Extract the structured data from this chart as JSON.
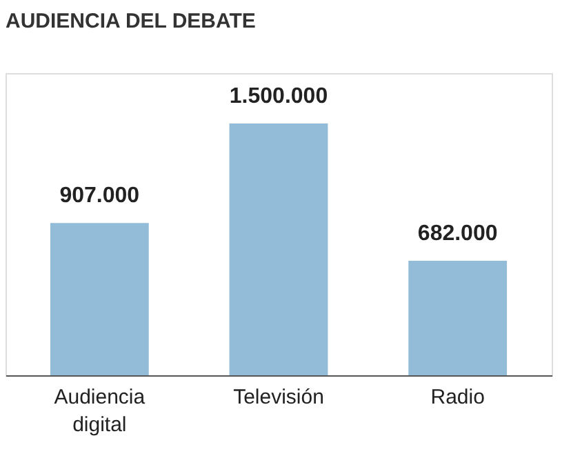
{
  "chart_data": {
    "type": "bar",
    "title": "AUDIENCIA DEL DEBATE",
    "categories": [
      "Audiencia digital",
      "Televisión",
      "Radio"
    ],
    "values": [
      907000,
      1500000,
      682000
    ],
    "value_labels": [
      "907.000",
      "1.500.000",
      "682.000"
    ],
    "color": "#93bcd9",
    "tick_labels": "x"
  }
}
